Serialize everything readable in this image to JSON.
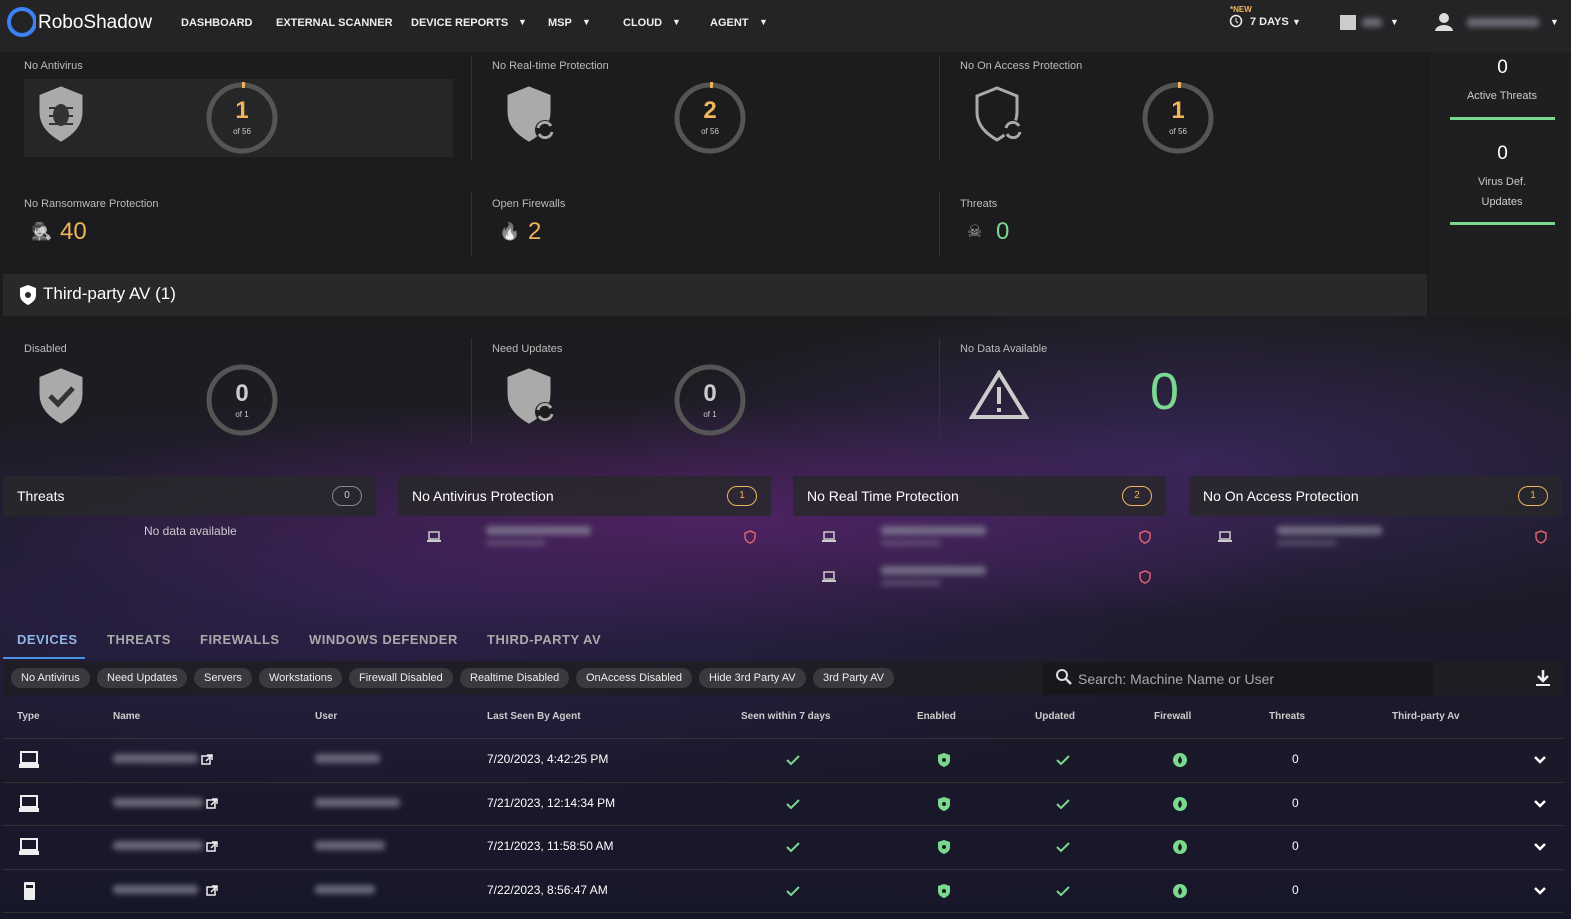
{
  "nav": {
    "brand": "RoboShadow",
    "items": [
      "DASHBOARD",
      "EXTERNAL SCANNER",
      "DEVICE REPORTS",
      "MSP",
      "CLOUD",
      "AGENT"
    ],
    "new_badge": "*NEW",
    "period": "7 DAYS"
  },
  "protection_cards": [
    {
      "label": "No Antivirus",
      "value": 1,
      "total": "of 56"
    },
    {
      "label": "No Real-time Protection",
      "value": 2,
      "total": "of 56"
    },
    {
      "label": "No On Access Protection",
      "value": 1,
      "total": "of 56"
    }
  ],
  "summary_stats": [
    {
      "label": "No Ransomware Protection",
      "value": 40
    },
    {
      "label": "Open Firewalls",
      "value": 2
    },
    {
      "label": "Threats",
      "value": 0
    }
  ],
  "side_stats": [
    {
      "value": 0,
      "label": "Active Threats"
    },
    {
      "value": 0,
      "label": "Virus Def. Updates"
    }
  ],
  "third_party": {
    "title": "Third-party AV (1)",
    "cards": [
      {
        "label": "Disabled",
        "value": 0,
        "total": "of 1"
      },
      {
        "label": "Need Updates",
        "value": 0,
        "total": "of 1"
      },
      {
        "label": "No Data Available",
        "value": 0
      }
    ]
  },
  "panels": [
    {
      "title": "Threats",
      "count": 0,
      "empty_text": "No data available"
    },
    {
      "title": "No Antivirus Protection",
      "count": 1
    },
    {
      "title": "No Real Time Protection",
      "count": 2
    },
    {
      "title": "No On Access Protection",
      "count": 1
    }
  ],
  "tabs": [
    "DEVICES",
    "THREATS",
    "FIREWALLS",
    "WINDOWS DEFENDER",
    "THIRD-PARTY AV"
  ],
  "filters": [
    "No Antivirus",
    "Need Updates",
    "Servers",
    "Workstations",
    "Firewall Disabled",
    "Realtime Disabled",
    "OnAccess Disabled",
    "Hide 3rd Party AV",
    "3rd Party AV"
  ],
  "search_placeholder": "Search: Machine Name or User",
  "table": {
    "columns": [
      "Type",
      "Name",
      "User",
      "Last Seen By Agent",
      "Seen within 7 days",
      "Enabled",
      "Updated",
      "Firewall",
      "Threats",
      "Third-party Av"
    ],
    "rows": [
      {
        "last_seen": "7/20/2023, 4:42:25 PM",
        "threats": 0
      },
      {
        "last_seen": "7/21/2023, 12:14:34 PM",
        "threats": 0
      },
      {
        "last_seen": "7/21/2023, 11:58:50 AM",
        "threats": 0
      },
      {
        "last_seen": "7/22/2023, 8:56:47 AM",
        "threats": 0
      }
    ]
  }
}
